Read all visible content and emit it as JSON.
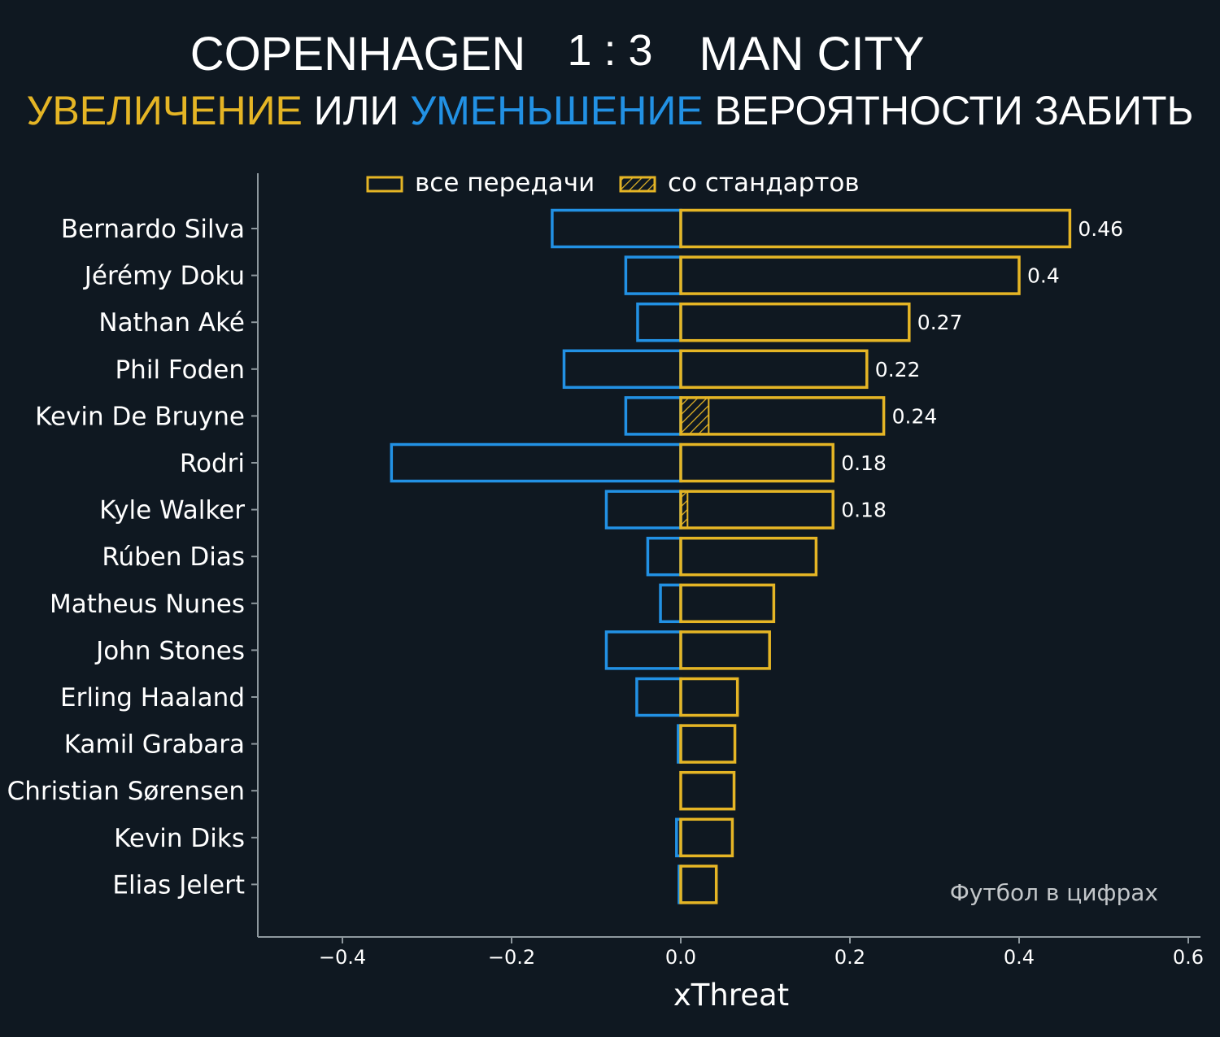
{
  "header": {
    "home_team": "COPENHAGEN",
    "score": "1 : 3",
    "away_team": "MAN CITY",
    "subtitle_increase": "УВЕЛИЧЕНИЕ",
    "subtitle_or": "ИЛИ",
    "subtitle_decrease": "УМЕНЬШЕНИЕ",
    "subtitle_rest": "ВЕРОЯТНОСТИ ЗАБИТЬ"
  },
  "watermark": "Футбол в цифрах",
  "colors": {
    "background": "#0f1821",
    "increase": "#e5b525",
    "decrease": "#2291e4",
    "text": "#ffffff",
    "axis": "#8e989e",
    "watermark": "#c3c7ca"
  },
  "chart_data": {
    "type": "bar",
    "orientation": "horizontal",
    "xlabel": "xThreat",
    "xlim": [
      -0.5,
      0.62
    ],
    "xticks": [
      -0.4,
      -0.2,
      0.0,
      0.2,
      0.4,
      0.6
    ],
    "xtick_labels": [
      "−0.4",
      "−0.2",
      "0.0",
      "0.2",
      "0.4",
      "0.6"
    ],
    "legend": {
      "position": "top",
      "items": [
        {
          "label": "все передачи",
          "style": "outline"
        },
        {
          "label": "со стандартов",
          "style": "hatched"
        }
      ]
    },
    "categories": [
      "Bernardo Silva",
      "Jérémy Doku",
      "Nathan Aké",
      "Phil Foden",
      "Kevin De Bruyne",
      "Rodri",
      "Kyle Walker",
      "Rúben Dias",
      "Matheus Nunes",
      "John Stones",
      "Erling Haaland",
      "Kamil Grabara",
      "Christian Sørensen",
      "Kevin Diks",
      "Elias Jelert"
    ],
    "series": [
      {
        "name": "increase",
        "values": [
          0.46,
          0.4,
          0.27,
          0.22,
          0.24,
          0.18,
          0.18,
          0.16,
          0.11,
          0.105,
          0.067,
          0.064,
          0.063,
          0.061,
          0.042
        ]
      },
      {
        "name": "decrease",
        "values": [
          -0.152,
          -0.065,
          -0.051,
          -0.138,
          -0.065,
          -0.342,
          -0.088,
          -0.039,
          -0.024,
          -0.088,
          -0.052,
          -0.003,
          0.0,
          -0.005,
          -0.002
        ]
      },
      {
        "name": "set_pieces",
        "values": [
          0,
          0,
          0,
          0,
          0.033,
          0,
          0.008,
          0,
          0,
          0,
          0,
          0,
          0,
          0,
          0
        ]
      }
    ],
    "value_labels": [
      "0.46",
      "0.4",
      "0.27",
      "0.22",
      "0.24",
      "0.18",
      "0.18",
      "",
      "",
      "",
      "",
      "",
      "",
      "",
      ""
    ]
  }
}
